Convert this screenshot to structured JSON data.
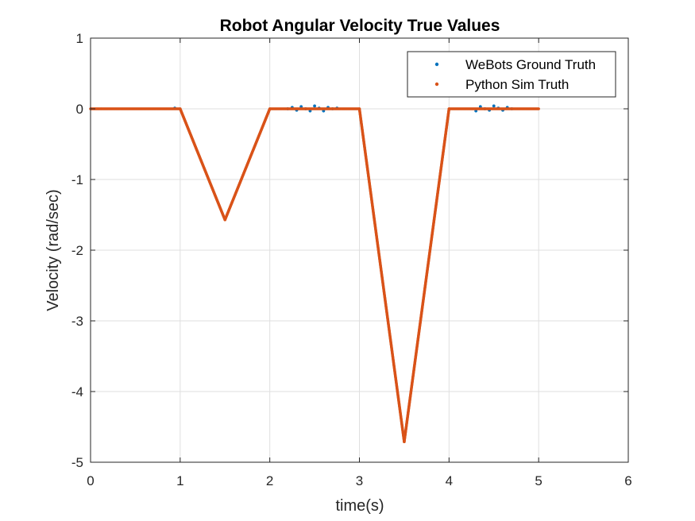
{
  "chart_data": {
    "type": "scatter",
    "title": "Robot Angular Velocity True Values",
    "xlabel": "time(s)",
    "ylabel": "Velocity (rad/sec)",
    "xlim": [
      0,
      6
    ],
    "ylim": [
      -5,
      1
    ],
    "xticks": [
      "0",
      "1",
      "2",
      "3",
      "4",
      "5",
      "6"
    ],
    "yticks": [
      "1",
      "0",
      "-1",
      "-2",
      "-3",
      "-4",
      "-5"
    ],
    "grid": true,
    "legend_position": "top-right",
    "series": [
      {
        "name": "WeBots Ground Truth",
        "color": "#0072BD",
        "points": [
          [
            0.94,
            0.01
          ],
          [
            2.2,
            0.0
          ],
          [
            2.25,
            0.02
          ],
          [
            2.3,
            -0.02
          ],
          [
            2.35,
            0.03
          ],
          [
            2.4,
            0.0
          ],
          [
            2.45,
            -0.03
          ],
          [
            2.5,
            0.04
          ],
          [
            2.55,
            0.01
          ],
          [
            2.6,
            -0.03
          ],
          [
            2.65,
            0.02
          ],
          [
            2.7,
            0.0
          ],
          [
            2.75,
            0.01
          ],
          [
            4.3,
            -0.03
          ],
          [
            4.35,
            0.03
          ],
          [
            4.4,
            0.0
          ],
          [
            4.45,
            -0.02
          ],
          [
            4.5,
            0.04
          ],
          [
            4.55,
            0.01
          ],
          [
            4.6,
            -0.02
          ],
          [
            4.65,
            0.02
          ],
          [
            4.7,
            0.0
          ]
        ]
      },
      {
        "name": "Python Sim Truth",
        "color": "#D95319",
        "points": [
          [
            0,
            0
          ],
          [
            1,
            0
          ],
          [
            1.5,
            -1.57
          ],
          [
            2,
            0
          ],
          [
            3,
            0
          ],
          [
            3.5,
            -4.71
          ],
          [
            4,
            0
          ],
          [
            5,
            0
          ]
        ]
      }
    ]
  }
}
